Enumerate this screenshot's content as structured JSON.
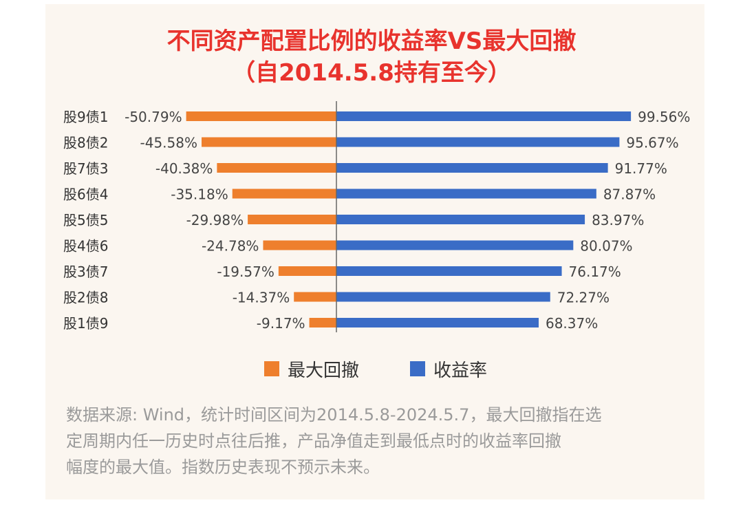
{
  "title_line1": "不同资产配置比例的收益率VS最大回撤",
  "title_line2": "（自2014.5.8持有至今）",
  "colors": {
    "drawdown": "#ee7f2d",
    "return": "#3a6cc6",
    "title": "#e8332d",
    "background": "#fbf6f0"
  },
  "chart_data": {
    "type": "bar",
    "orientation": "horizontal-diverging",
    "categories": [
      "股9债1",
      "股8债2",
      "股7债3",
      "股6债4",
      "股5债5",
      "股4债6",
      "股3债7",
      "股2债8",
      "股1债9"
    ],
    "series": [
      {
        "name": "最大回撤",
        "values": [
          -50.79,
          -45.58,
          -40.38,
          -35.18,
          -29.98,
          -24.78,
          -19.57,
          -14.37,
          -9.17
        ],
        "labels": [
          "-50.79%",
          "-45.58%",
          "-40.38%",
          "-35.18%",
          "-29.98%",
          "-24.78%",
          "-19.57%",
          "-14.37%",
          "-9.17%"
        ]
      },
      {
        "name": "收益率",
        "values": [
          99.56,
          95.67,
          91.77,
          87.87,
          83.97,
          80.07,
          76.17,
          72.27,
          68.37
        ],
        "labels": [
          "99.56%",
          "95.67%",
          "91.77%",
          "87.87%",
          "83.97%",
          "80.07%",
          "76.17%",
          "72.27%",
          "68.37%"
        ]
      }
    ],
    "legend": "bottom",
    "grid": false
  },
  "legend": {
    "drawdown_label": "最大回撤",
    "return_label": "收益率"
  },
  "note_lines": [
    "数据来源: Wind，统计时间区间为2014.5.8-2024.5.7，最大回撤指在选",
    "定周期内任一历史时点往后推，产品净值走到最低点时的收益率回撤",
    "幅度的最大值。指数历史表现不预示未来。"
  ]
}
